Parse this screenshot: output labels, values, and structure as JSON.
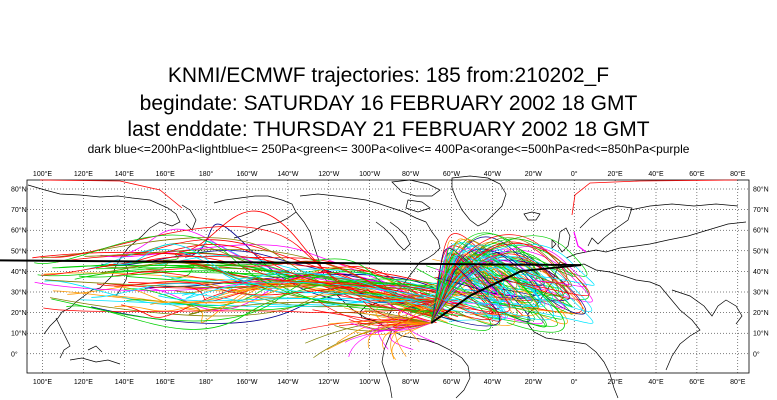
{
  "title_line1": "KNMI/ECMWF trajectories:  185 from:210202_F",
  "title_line2": "begindate:  SATURDAY  16 FEBRUARY  2002 18 GMT",
  "title_line3": "last enddate:  THURSDAY  21 FEBRUARY  2002 18 GMT",
  "legend_text": "dark blue<=200hPa<lightblue<= 250Pa<green<= 300Pa<olive<= 400Pa<orange<=500hPa<red<=850hPa<purple",
  "map": {
    "lon_labels": [
      "100°E",
      "120°E",
      "140°E",
      "160°E",
      "180°",
      "160°W",
      "140°W",
      "120°W",
      "100°W",
      "80°W",
      "60°W",
      "40°W",
      "20°W",
      "0°",
      "20°E",
      "40°E",
      "60°E",
      "80°E"
    ],
    "lat_labels": [
      "80°N",
      "70°N",
      "60°N",
      "50°N",
      "40°N",
      "30°N",
      "20°N",
      "10°N",
      "0°"
    ],
    "start_point": {
      "lon": -70,
      "lat": 20
    },
    "end_point": {
      "lon": 5,
      "lat": 51
    },
    "trajectory_colors": {
      "dark_blue": "#00008b",
      "light_blue": "#00e5ff",
      "green": "#00d000",
      "olive": "#808000",
      "orange": "#ff9900",
      "red": "#ff0000",
      "purple": "#ff00ff"
    }
  }
}
